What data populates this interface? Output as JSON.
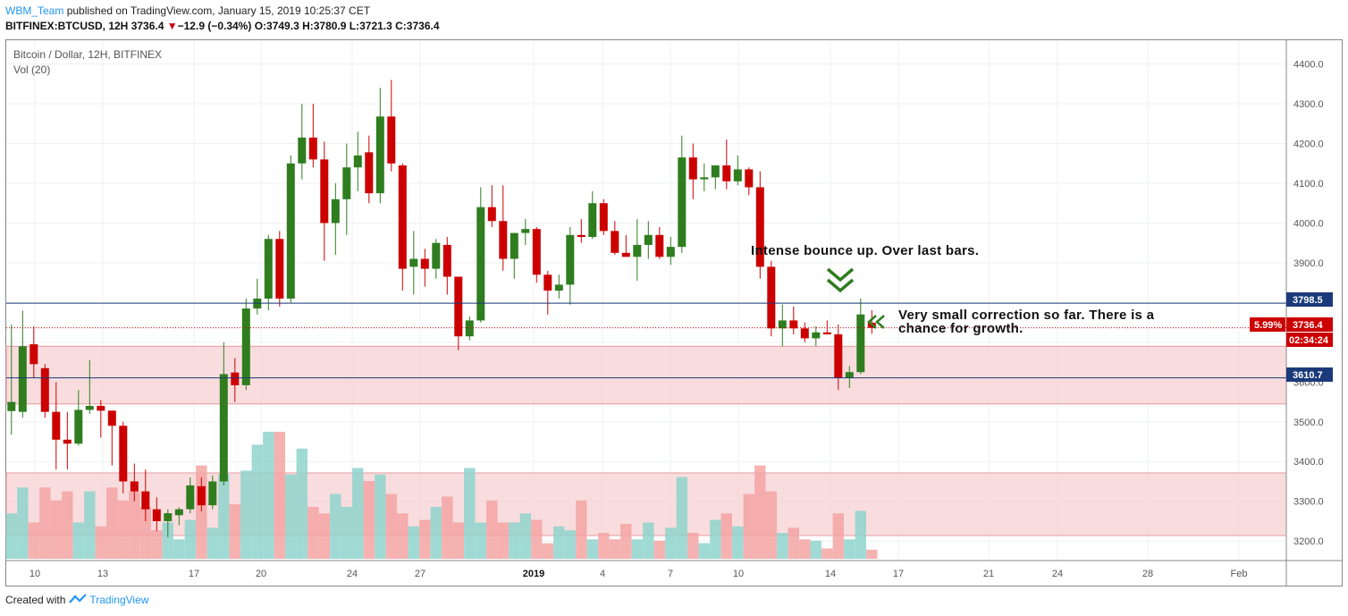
{
  "header": {
    "author": "WBM_Team",
    "published_line": "published on TradingView.com, January 15, 2019 10:25:37 CET",
    "symbol": "BITFINEX:BTCUSD, 12H",
    "last": "3736.4",
    "change": "−12.9 (−0.34%)",
    "ohlc": "O:3749.3 H:3780.9 L:3721.3 C:3736.4",
    "down_arrow": "▼"
  },
  "legend": {
    "title": "Bitcoin / Dollar, 12H, BITFINEX",
    "volume": "Vol (20)"
  },
  "footer": {
    "created_with": "Created with",
    "brand": "TradingView"
  },
  "annotations": {
    "bounce": "Intense bounce up. Over last bars.",
    "correction_line1": "Very small correction so far. There is a",
    "correction_line2": "chance for growth."
  },
  "price_tags": {
    "level_high": "3798.5",
    "pct": "5.99%",
    "current": "3736.4",
    "countdown": "02:34:24",
    "level_low": "3610.7"
  },
  "colors": {
    "up": "#2f7d1f",
    "down": "#cc0000",
    "vol_up": "#8fd3cc",
    "vol_down": "#f4a3a3",
    "zone": "#f5c7c8",
    "hline": "#1b3a7a",
    "accent": "#2196f3"
  },
  "chart_data": {
    "type": "candlestick",
    "title": "Bitcoin / Dollar, 12H, BITFINEX",
    "interval": "12H",
    "y_axis_ticks": [
      3200,
      3300,
      3400,
      3500,
      3600,
      3700,
      3800,
      3900,
      4000,
      4100,
      4200,
      4300,
      4400
    ],
    "ylim": [
      3150,
      4440
    ],
    "x_axis_ticks": [
      "10",
      "13",
      "17",
      "20",
      "24",
      "27",
      "2019",
      "4",
      "7",
      "10",
      "14",
      "17",
      "21",
      "24",
      "28",
      "Feb"
    ],
    "horizontal_levels": [
      3798.5,
      3610.7
    ],
    "support_zone": [
      3545,
      3690
    ],
    "volume_zone": true,
    "candles": [
      {
        "o": 3527,
        "h": 3745,
        "l": 3468,
        "c": 3550
      },
      {
        "o": 3525,
        "h": 3780,
        "l": 3510,
        "c": 3690
      },
      {
        "o": 3695,
        "h": 3740,
        "l": 3610,
        "c": 3645
      },
      {
        "o": 3635,
        "h": 3645,
        "l": 3510,
        "c": 3525
      },
      {
        "o": 3525,
        "h": 3600,
        "l": 3380,
        "c": 3455
      },
      {
        "o": 3455,
        "h": 3525,
        "l": 3380,
        "c": 3445
      },
      {
        "o": 3445,
        "h": 3580,
        "l": 3440,
        "c": 3530
      },
      {
        "o": 3530,
        "h": 3655,
        "l": 3520,
        "c": 3540
      },
      {
        "o": 3540,
        "h": 3555,
        "l": 3460,
        "c": 3528
      },
      {
        "o": 3528,
        "h": 3528,
        "l": 3390,
        "c": 3490
      },
      {
        "o": 3490,
        "h": 3500,
        "l": 3320,
        "c": 3350
      },
      {
        "o": 3350,
        "h": 3395,
        "l": 3300,
        "c": 3325
      },
      {
        "o": 3325,
        "h": 3380,
        "l": 3250,
        "c": 3280
      },
      {
        "o": 3280,
        "h": 3310,
        "l": 3225,
        "c": 3250
      },
      {
        "o": 3250,
        "h": 3280,
        "l": 3210,
        "c": 3270
      },
      {
        "o": 3265,
        "h": 3285,
        "l": 3240,
        "c": 3280
      },
      {
        "o": 3280,
        "h": 3360,
        "l": 3270,
        "c": 3340
      },
      {
        "o": 3338,
        "h": 3360,
        "l": 3275,
        "c": 3290
      },
      {
        "o": 3290,
        "h": 3365,
        "l": 3280,
        "c": 3350
      },
      {
        "o": 3350,
        "h": 3700,
        "l": 3340,
        "c": 3620
      },
      {
        "o": 3624,
        "h": 3660,
        "l": 3550,
        "c": 3592
      },
      {
        "o": 3592,
        "h": 3810,
        "l": 3580,
        "c": 3785
      },
      {
        "o": 3785,
        "h": 3860,
        "l": 3770,
        "c": 3810
      },
      {
        "o": 3810,
        "h": 3970,
        "l": 3780,
        "c": 3960
      },
      {
        "o": 3960,
        "h": 3980,
        "l": 3790,
        "c": 3810
      },
      {
        "o": 3810,
        "h": 4170,
        "l": 3800,
        "c": 4150
      },
      {
        "o": 4150,
        "h": 4300,
        "l": 4110,
        "c": 4215
      },
      {
        "o": 4215,
        "h": 4300,
        "l": 4140,
        "c": 4160
      },
      {
        "o": 4160,
        "h": 4205,
        "l": 3905,
        "c": 4000
      },
      {
        "o": 4000,
        "h": 4100,
        "l": 3920,
        "c": 4060
      },
      {
        "o": 4060,
        "h": 4200,
        "l": 3970,
        "c": 4140
      },
      {
        "o": 4140,
        "h": 4230,
        "l": 4080,
        "c": 4170
      },
      {
        "o": 4178,
        "h": 4220,
        "l": 4050,
        "c": 4075
      },
      {
        "o": 4075,
        "h": 4340,
        "l": 4050,
        "c": 4268
      },
      {
        "o": 4268,
        "h": 4360,
        "l": 4130,
        "c": 4150
      },
      {
        "o": 4145,
        "h": 4150,
        "l": 3830,
        "c": 3885
      },
      {
        "o": 3890,
        "h": 3980,
        "l": 3820,
        "c": 3910
      },
      {
        "o": 3910,
        "h": 3935,
        "l": 3840,
        "c": 3885
      },
      {
        "o": 3885,
        "h": 3960,
        "l": 3860,
        "c": 3950
      },
      {
        "o": 3945,
        "h": 3965,
        "l": 3820,
        "c": 3865
      },
      {
        "o": 3865,
        "h": 3865,
        "l": 3680,
        "c": 3715
      },
      {
        "o": 3715,
        "h": 3765,
        "l": 3705,
        "c": 3755
      },
      {
        "o": 3755,
        "h": 4090,
        "l": 3750,
        "c": 4040
      },
      {
        "o": 4040,
        "h": 4095,
        "l": 3990,
        "c": 4005
      },
      {
        "o": 4005,
        "h": 4095,
        "l": 3880,
        "c": 3910
      },
      {
        "o": 3910,
        "h": 3975,
        "l": 3860,
        "c": 3975
      },
      {
        "o": 3975,
        "h": 4010,
        "l": 3945,
        "c": 3985
      },
      {
        "o": 3985,
        "h": 3990,
        "l": 3850,
        "c": 3870
      },
      {
        "o": 3870,
        "h": 3880,
        "l": 3770,
        "c": 3830
      },
      {
        "o": 3830,
        "h": 3870,
        "l": 3810,
        "c": 3845
      },
      {
        "o": 3845,
        "h": 3990,
        "l": 3795,
        "c": 3970
      },
      {
        "o": 3970,
        "h": 4010,
        "l": 3950,
        "c": 3965
      },
      {
        "o": 3965,
        "h": 4080,
        "l": 3960,
        "c": 4050
      },
      {
        "o": 4050,
        "h": 4060,
        "l": 3970,
        "c": 3980
      },
      {
        "o": 3980,
        "h": 4005,
        "l": 3920,
        "c": 3925
      },
      {
        "o": 3925,
        "h": 3970,
        "l": 3915,
        "c": 3915
      },
      {
        "o": 3915,
        "h": 4010,
        "l": 3855,
        "c": 3945
      },
      {
        "o": 3945,
        "h": 4005,
        "l": 3910,
        "c": 3970
      },
      {
        "o": 3970,
        "h": 3990,
        "l": 3910,
        "c": 3915
      },
      {
        "o": 3915,
        "h": 3965,
        "l": 3895,
        "c": 3940
      },
      {
        "o": 3940,
        "h": 4220,
        "l": 3925,
        "c": 4165
      },
      {
        "o": 4165,
        "h": 4200,
        "l": 4060,
        "c": 4110
      },
      {
        "o": 4110,
        "h": 4150,
        "l": 4080,
        "c": 4115
      },
      {
        "o": 4115,
        "h": 4140,
        "l": 4085,
        "c": 4145
      },
      {
        "o": 4145,
        "h": 4210,
        "l": 4085,
        "c": 4105
      },
      {
        "o": 4105,
        "h": 4170,
        "l": 4095,
        "c": 4135
      },
      {
        "o": 4135,
        "h": 4140,
        "l": 4070,
        "c": 4090
      },
      {
        "o": 4090,
        "h": 4130,
        "l": 3860,
        "c": 3890
      },
      {
        "o": 3890,
        "h": 3905,
        "l": 3715,
        "c": 3735
      },
      {
        "o": 3735,
        "h": 3795,
        "l": 3690,
        "c": 3755
      },
      {
        "o": 3755,
        "h": 3790,
        "l": 3720,
        "c": 3735
      },
      {
        "o": 3735,
        "h": 3750,
        "l": 3700,
        "c": 3710
      },
      {
        "o": 3710,
        "h": 3740,
        "l": 3690,
        "c": 3725
      },
      {
        "o": 3725,
        "h": 3755,
        "l": 3720,
        "c": 3720
      },
      {
        "o": 3720,
        "h": 3745,
        "l": 3580,
        "c": 3610
      },
      {
        "o": 3610,
        "h": 3640,
        "l": 3585,
        "c": 3625
      },
      {
        "o": 3625,
        "h": 3810,
        "l": 3620,
        "c": 3770
      },
      {
        "o": 3749.3,
        "h": 3780.9,
        "l": 3721.3,
        "c": 3736.4
      }
    ],
    "volume_relative": [
      0.35,
      0.55,
      0.28,
      0.55,
      0.45,
      0.52,
      0.28,
      0.52,
      0.25,
      0.55,
      0.45,
      0.52,
      0.4,
      0.22,
      0.28,
      0.15,
      0.3,
      0.72,
      0.24,
      0.65,
      0.42,
      0.68,
      0.88,
      0.98,
      0.98,
      0.65,
      0.85,
      0.4,
      0.35,
      0.5,
      0.4,
      0.7,
      0.6,
      0.65,
      0.5,
      0.35,
      0.25,
      0.3,
      0.4,
      0.48,
      0.28,
      0.7,
      0.28,
      0.45,
      0.28,
      0.28,
      0.35,
      0.3,
      0.12,
      0.25,
      0.22,
      0.45,
      0.15,
      0.2,
      0.15,
      0.27,
      0.15,
      0.28,
      0.14,
      0.24,
      0.63,
      0.2,
      0.12,
      0.3,
      0.35,
      0.25,
      0.5,
      0.72,
      0.52,
      0.2,
      0.24,
      0.15,
      0.14,
      0.08,
      0.35,
      0.15,
      0.37,
      0.07
    ]
  }
}
